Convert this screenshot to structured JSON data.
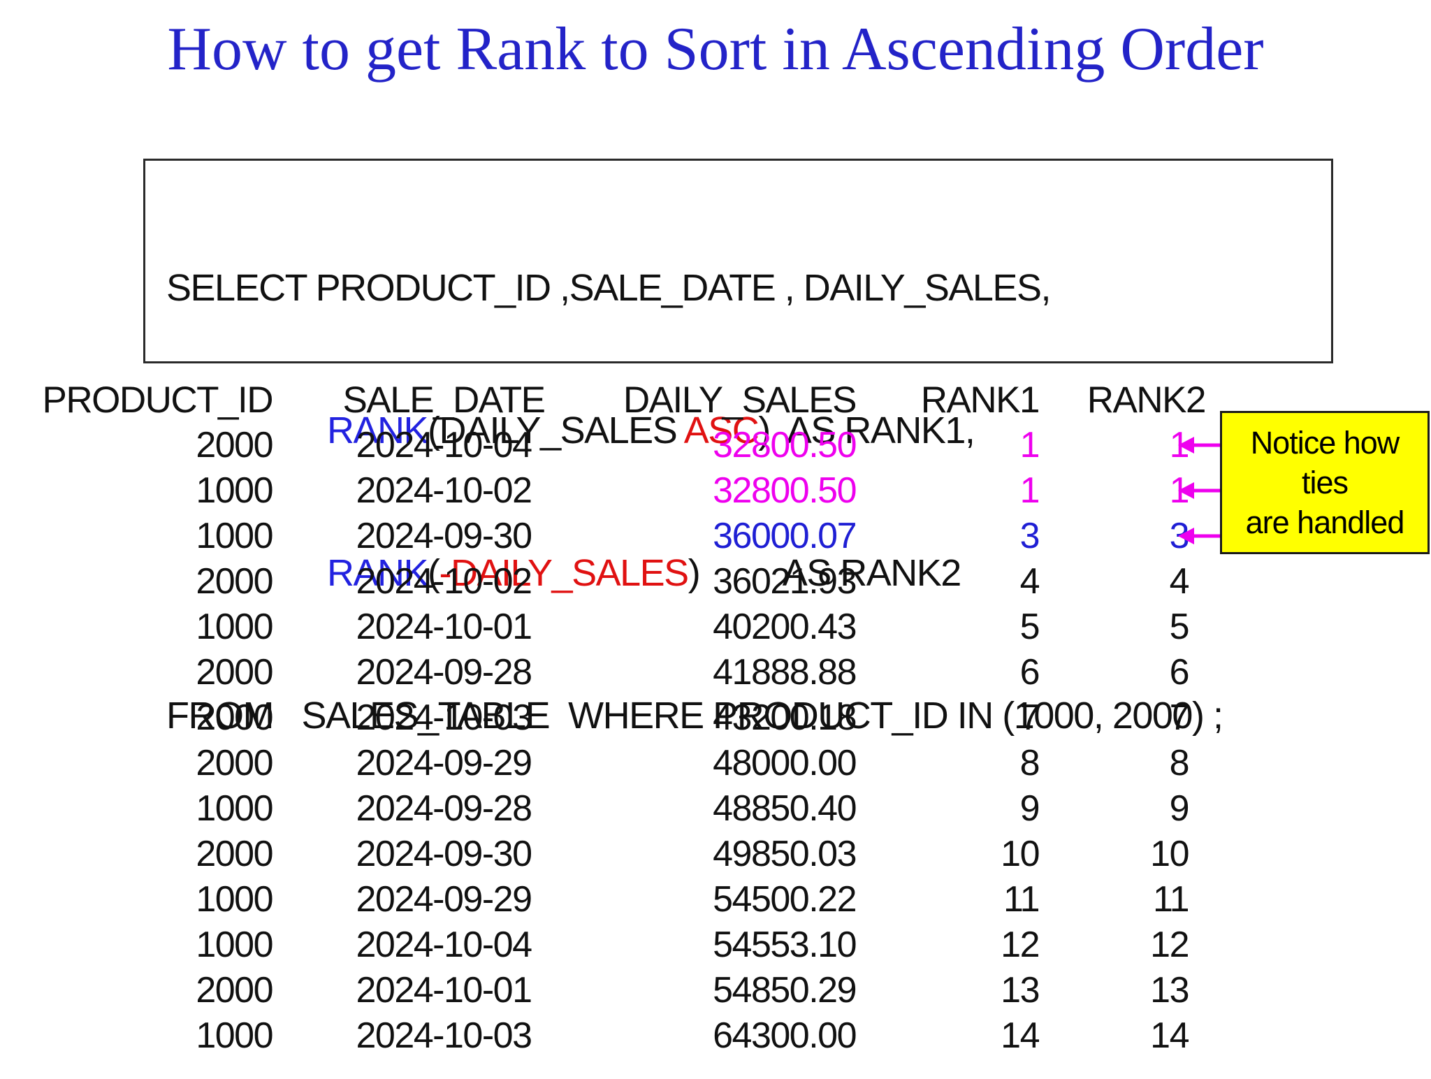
{
  "title": "How to get Rank to Sort in Ascending Order",
  "sql": {
    "line1": "SELECT PRODUCT_ID ,SALE_DATE , DAILY_SALES,",
    "line2": {
      "keyword": "RANK",
      "pre_arg": "(DAILY_SALES ",
      "asc": "ASC",
      "post": ")  AS RANK1,"
    },
    "line3": {
      "keyword": "RANK",
      "open": "(",
      "neg_arg": "-DAILY_SALES",
      "post": ")         AS RANK2"
    },
    "line4": "FROM   SALES_TABLE  WHERE PRODUCT_ID IN (1000, 2000) ;"
  },
  "table": {
    "headers": [
      "PRODUCT_ID",
      "SALE_DATE",
      "DAILY_SALES",
      "RANK1",
      "RANK2"
    ],
    "rows": [
      {
        "product_id": "2000",
        "sale_date": "2024-10-04",
        "daily_sales": "32800.50",
        "rank1": "1",
        "rank2": "1",
        "value_color": "magenta",
        "tie_arrow": true
      },
      {
        "product_id": "1000",
        "sale_date": "2024-10-02",
        "daily_sales": "32800.50",
        "rank1": "1",
        "rank2": "1",
        "value_color": "magenta",
        "tie_arrow": true
      },
      {
        "product_id": "1000",
        "sale_date": "2024-09-30",
        "daily_sales": "36000.07",
        "rank1": "3",
        "rank2": "3",
        "value_color": "blue",
        "tie_arrow": true
      },
      {
        "product_id": "2000",
        "sale_date": "2024-10-02",
        "daily_sales": "36021.93",
        "rank1": "4",
        "rank2": "4",
        "value_color": "black",
        "tie_arrow": false
      },
      {
        "product_id": "1000",
        "sale_date": "2024-10-01",
        "daily_sales": "40200.43",
        "rank1": "5",
        "rank2": "5",
        "value_color": "black",
        "tie_arrow": false
      },
      {
        "product_id": "2000",
        "sale_date": "2024-09-28",
        "daily_sales": "41888.88",
        "rank1": "6",
        "rank2": "6",
        "value_color": "black",
        "tie_arrow": false
      },
      {
        "product_id": "2000",
        "sale_date": "2024-10-03",
        "daily_sales": "43200.18",
        "rank1": "7",
        "rank2": "7",
        "value_color": "black",
        "tie_arrow": false
      },
      {
        "product_id": "2000",
        "sale_date": "2024-09-29",
        "daily_sales": "48000.00",
        "rank1": "8",
        "rank2": "8",
        "value_color": "black",
        "tie_arrow": false
      },
      {
        "product_id": "1000",
        "sale_date": "2024-09-28",
        "daily_sales": "48850.40",
        "rank1": "9",
        "rank2": "9",
        "value_color": "black",
        "tie_arrow": false
      },
      {
        "product_id": "2000",
        "sale_date": "2024-09-30",
        "daily_sales": "49850.03",
        "rank1": "10",
        "rank2": "10",
        "value_color": "black",
        "tie_arrow": false
      },
      {
        "product_id": "1000",
        "sale_date": "2024-09-29",
        "daily_sales": "54500.22",
        "rank1": "11",
        "rank2": "11",
        "value_color": "black",
        "tie_arrow": false
      },
      {
        "product_id": "1000",
        "sale_date": "2024-10-04",
        "daily_sales": "54553.10",
        "rank1": "12",
        "rank2": "12",
        "value_color": "black",
        "tie_arrow": false
      },
      {
        "product_id": "2000",
        "sale_date": "2024-10-01",
        "daily_sales": "54850.29",
        "rank1": "13",
        "rank2": "13",
        "value_color": "black",
        "tie_arrow": false
      },
      {
        "product_id": "1000",
        "sale_date": "2024-10-03",
        "daily_sales": "64300.00",
        "rank1": "14",
        "rank2": "14",
        "value_color": "black",
        "tie_arrow": false
      }
    ]
  },
  "note": {
    "lines": [
      "Notice how",
      "ties",
      "are handled"
    ]
  },
  "colors": {
    "title_blue": "#2323c8",
    "keyword_blue": "#2222e0",
    "code_red": "#e01111",
    "magenta": "#ee00ee",
    "data_blue": "#1f1fd4",
    "note_bg": "#ffff00",
    "text_black": "#111111"
  }
}
